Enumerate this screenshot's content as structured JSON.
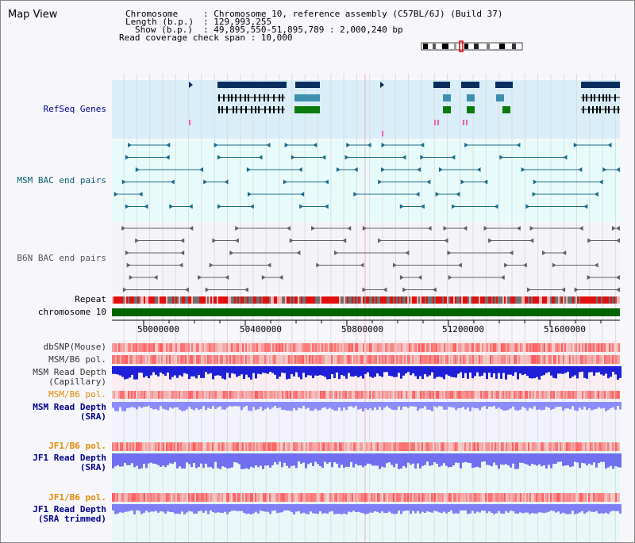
{
  "app": {
    "title": "Map View"
  },
  "header": {
    "chromosome_key": "Chromosome",
    "chromosome_val": ": Chromosome 10, reference assembly (C57BL/6J) (Build 37)",
    "length_key": "Length (b.p.)",
    "length_val": ": 129,993,255",
    "show_key": "Show (b.p.)",
    "show_val": ": 49,895,550-51,895,789 : 2,000,240 bp",
    "coverage": "Read coverage check span : 10,000"
  },
  "tracks": {
    "refseq": "RefSeq Genes",
    "msm_bac": "MSM BAC end pairs",
    "b6n_bac": "B6N BAC end pairs",
    "repeat": "Repeat",
    "chromosome": "chromosome 10",
    "dbsnp": "dbSNP(Mouse)",
    "msm_b6_pol_1": "MSM/B6 pol.",
    "msm_read_depth_cap_1": "MSM Read Depth",
    "msm_read_depth_cap_2": "(Capillary)",
    "msm_b6_pol_2": "MSM/B6 pol.",
    "msm_read_depth_sra_1": "MSM Read Depth",
    "msm_read_depth_sra_2": "(SRA)",
    "jf1_b6_pol_1": "JF1/B6 pol.",
    "jf1_read_depth_sra_1": "JF1 Read Depth",
    "jf1_read_depth_sra_2": "(SRA)",
    "jf1_b6_pol_2": "JF1/B6 pol.",
    "jf1_read_depth_trim_1": "JF1 Read Depth",
    "jf1_read_depth_trim_2": "(SRA trimmed)"
  },
  "axis": {
    "ticks": [
      "50000000",
      "50400000",
      "50800000",
      "51200000",
      "51600000"
    ]
  },
  "colors": {
    "label_blue": "#00008b",
    "label_teal": "#0b5f75",
    "label_gray": "#555555",
    "label_orange": "#e08a00",
    "gene_navy": "#0b2e5e",
    "gene_teal": "#3e8fb0",
    "gene_green": "#0a7a0a",
    "chromosome_green": "#006400",
    "bac_teal": "#1b6c8a",
    "depth_blue": "#1f1fd8",
    "depth_light": "#8c8cff"
  }
}
